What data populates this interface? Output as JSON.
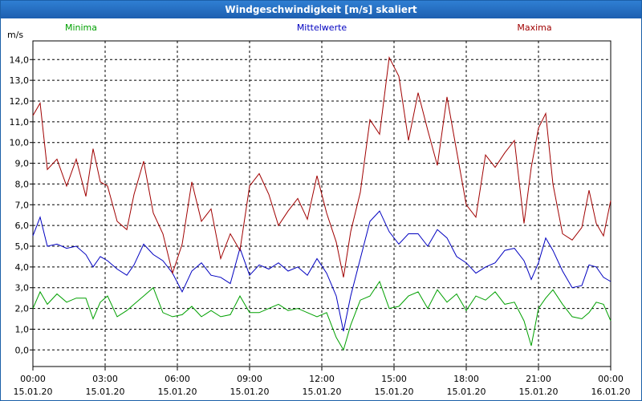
{
  "window": {
    "title": "Windgeschwindigkeit [m/s] skaliert"
  },
  "chart_data": {
    "type": "line",
    "title": "Windgeschwindigkeit [m/s] skaliert",
    "ylabel": "m/s",
    "xlabel": "",
    "ylim": [
      -0.8,
      14.9
    ],
    "xlim": [
      0,
      24
    ],
    "grid": true,
    "yticks": [
      "0,0",
      "1,0",
      "2,0",
      "3,0",
      "4,0",
      "5,0",
      "6,0",
      "7,0",
      "8,0",
      "9,0",
      "10,0",
      "11,0",
      "12,0",
      "13,0",
      "14,0"
    ],
    "yticks_values": [
      0,
      1,
      2,
      3,
      4,
      5,
      6,
      7,
      8,
      9,
      10,
      11,
      12,
      13,
      14
    ],
    "xticks": [
      {
        "time": "00:00",
        "date": "15.01.20"
      },
      {
        "time": "03:00",
        "date": "15.01.20"
      },
      {
        "time": "06:00",
        "date": "15.01.20"
      },
      {
        "time": "09:00",
        "date": "15.01.20"
      },
      {
        "time": "12:00",
        "date": "15.01.20"
      },
      {
        "time": "15:00",
        "date": "15.01.20"
      },
      {
        "time": "18:00",
        "date": "15.01.20"
      },
      {
        "time": "21:00",
        "date": "15.01.20"
      },
      {
        "time": "00:00",
        "date": "16.01.20"
      }
    ],
    "xticks_values": [
      0,
      3,
      6,
      9,
      12,
      15,
      18,
      21,
      24
    ],
    "series": [
      {
        "name": "Minima",
        "color": "#00a000",
        "x": [
          0,
          0.3,
          0.6,
          1.0,
          1.4,
          1.8,
          2.2,
          2.5,
          2.8,
          3.1,
          3.5,
          3.9,
          4.2,
          4.6,
          5.0,
          5.4,
          5.8,
          6.2,
          6.6,
          7.0,
          7.4,
          7.8,
          8.2,
          8.6,
          9.0,
          9.4,
          9.8,
          10.2,
          10.6,
          11.0,
          11.4,
          11.8,
          12.2,
          12.6,
          12.9,
          13.2,
          13.6,
          14.0,
          14.4,
          14.8,
          15.2,
          15.6,
          16.0,
          16.4,
          16.8,
          17.2,
          17.6,
          18.0,
          18.4,
          18.8,
          19.2,
          19.6,
          20.0,
          20.4,
          20.7,
          21.0,
          21.3,
          21.6,
          22.0,
          22.4,
          22.8,
          23.1,
          23.4,
          23.7,
          24.0
        ],
        "values": [
          2.0,
          2.8,
          2.2,
          2.7,
          2.3,
          2.5,
          2.5,
          1.5,
          2.3,
          2.6,
          1.6,
          1.9,
          2.2,
          2.6,
          3.0,
          1.8,
          1.6,
          1.7,
          2.1,
          1.6,
          1.9,
          1.6,
          1.7,
          2.6,
          1.8,
          1.8,
          2.0,
          2.2,
          1.9,
          2.0,
          1.8,
          1.6,
          1.8,
          0.6,
          0.0,
          1.2,
          2.4,
          2.6,
          3.3,
          2.0,
          2.1,
          2.6,
          2.8,
          2.0,
          2.9,
          2.3,
          2.7,
          1.9,
          2.6,
          2.4,
          2.8,
          2.2,
          2.3,
          1.4,
          0.2,
          2.0,
          2.5,
          2.9,
          2.2,
          1.6,
          1.5,
          1.8,
          2.3,
          2.2,
          1.4
        ]
      },
      {
        "name": "Mittelwerte",
        "color": "#0000c0",
        "x": [
          0,
          0.3,
          0.6,
          1.0,
          1.4,
          1.8,
          2.2,
          2.5,
          2.8,
          3.1,
          3.5,
          3.9,
          4.2,
          4.6,
          5.0,
          5.4,
          5.8,
          6.2,
          6.6,
          7.0,
          7.4,
          7.8,
          8.2,
          8.6,
          9.0,
          9.4,
          9.8,
          10.2,
          10.6,
          11.0,
          11.4,
          11.8,
          12.2,
          12.6,
          12.9,
          13.2,
          13.6,
          14.0,
          14.4,
          14.8,
          15.2,
          15.6,
          16.0,
          16.4,
          16.8,
          17.2,
          17.6,
          18.0,
          18.4,
          18.8,
          19.2,
          19.6,
          20.0,
          20.4,
          20.7,
          21.0,
          21.3,
          21.6,
          22.0,
          22.4,
          22.8,
          23.1,
          23.4,
          23.7,
          24.0
        ],
        "values": [
          5.5,
          6.4,
          5.0,
          5.1,
          4.9,
          5.0,
          4.6,
          4.0,
          4.5,
          4.3,
          3.9,
          3.6,
          4.1,
          5.1,
          4.6,
          4.3,
          3.7,
          2.8,
          3.8,
          4.2,
          3.6,
          3.5,
          3.2,
          4.9,
          3.6,
          4.1,
          3.9,
          4.2,
          3.8,
          4.0,
          3.6,
          4.4,
          3.7,
          2.6,
          0.9,
          2.6,
          4.4,
          6.2,
          6.7,
          5.7,
          5.1,
          5.6,
          5.6,
          5.0,
          5.8,
          5.4,
          4.5,
          4.2,
          3.7,
          4.0,
          4.2,
          4.8,
          4.9,
          4.3,
          3.4,
          4.2,
          5.4,
          4.8,
          3.8,
          3.0,
          3.1,
          4.1,
          4.0,
          3.5,
          3.3
        ]
      },
      {
        "name": "Maxima",
        "color": "#a00000",
        "x": [
          0,
          0.3,
          0.6,
          1.0,
          1.4,
          1.8,
          2.2,
          2.5,
          2.8,
          3.1,
          3.5,
          3.9,
          4.2,
          4.6,
          5.0,
          5.4,
          5.8,
          6.2,
          6.6,
          7.0,
          7.4,
          7.8,
          8.2,
          8.6,
          9.0,
          9.4,
          9.8,
          10.2,
          10.6,
          11.0,
          11.4,
          11.8,
          12.2,
          12.6,
          12.9,
          13.2,
          13.6,
          14.0,
          14.4,
          14.8,
          15.2,
          15.6,
          16.0,
          16.4,
          16.8,
          17.2,
          17.6,
          18.0,
          18.4,
          18.8,
          19.2,
          19.6,
          20.0,
          20.4,
          20.7,
          21.0,
          21.3,
          21.6,
          22.0,
          22.4,
          22.8,
          23.1,
          23.4,
          23.7,
          24.0
        ],
        "values": [
          11.3,
          11.9,
          8.7,
          9.2,
          7.9,
          9.2,
          7.4,
          9.7,
          8.1,
          7.9,
          6.2,
          5.8,
          7.5,
          9.1,
          6.6,
          5.6,
          3.7,
          5.1,
          8.1,
          6.2,
          6.8,
          4.4,
          5.6,
          4.8,
          7.9,
          8.5,
          7.5,
          6.0,
          6.7,
          7.3,
          6.3,
          8.4,
          6.6,
          5.2,
          3.5,
          5.7,
          7.6,
          11.1,
          10.4,
          14.1,
          13.2,
          10.1,
          12.4,
          10.6,
          8.9,
          12.2,
          9.6,
          7.0,
          6.4,
          9.4,
          8.8,
          9.5,
          10.1,
          6.1,
          8.8,
          10.7,
          11.4,
          8.0,
          5.6,
          5.3,
          5.9,
          7.7,
          6.1,
          5.5,
          7.2
        ]
      }
    ]
  }
}
